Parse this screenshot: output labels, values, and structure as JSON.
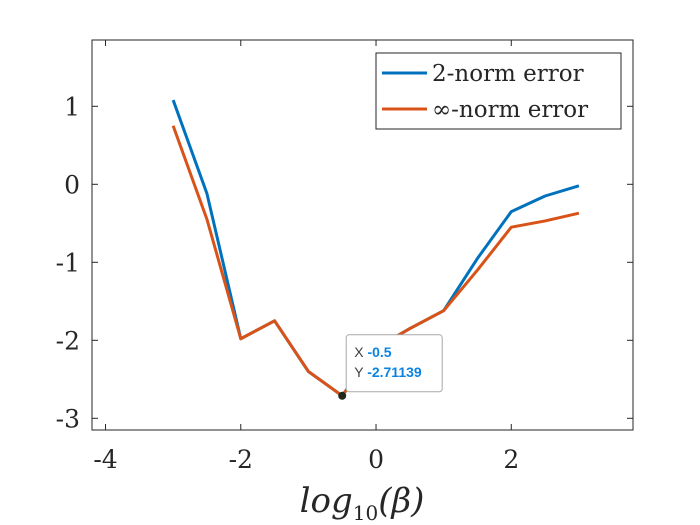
{
  "chart_data": {
    "type": "line",
    "title": "",
    "xlabel": {
      "prefix": "log",
      "subscript": "10",
      "arg": "(β)"
    },
    "ylabel": "",
    "xlim": [
      -4.2,
      3.8
    ],
    "ylim": [
      -3.15,
      1.85
    ],
    "xticks": [
      -4,
      -2,
      0,
      2
    ],
    "xtick_labels": [
      "-4",
      "-2",
      "0",
      "2"
    ],
    "yticks": [
      -3,
      -2,
      -1,
      0,
      1
    ],
    "ytick_labels": [
      "-3",
      "-2",
      "-1",
      "0",
      "1"
    ],
    "grid": false,
    "legend_position": "top-right",
    "series": [
      {
        "name": "2-norm error",
        "color": "#0072BD",
        "x": [
          -3,
          -2.5,
          -2,
          -1.5,
          -1,
          -0.5,
          0,
          0.5,
          1,
          1.5,
          2,
          2.5,
          3
        ],
        "y": [
          1.08,
          -0.12,
          -1.98,
          -1.75,
          -2.4,
          -2.71139,
          -2.1,
          -1.85,
          -1.62,
          -0.95,
          -0.35,
          -0.15,
          -0.02
        ]
      },
      {
        "name": "∞-norm error",
        "color": "#D95319",
        "x": [
          -3,
          -2.5,
          -2,
          -1.5,
          -1,
          -0.5,
          0,
          0.5,
          1,
          1.5,
          2,
          2.5,
          3
        ],
        "y": [
          0.75,
          -0.45,
          -1.98,
          -1.75,
          -2.4,
          -2.71139,
          -2.1,
          -1.85,
          -1.62,
          -1.1,
          -0.55,
          -0.47,
          -0.37
        ]
      }
    ],
    "datatip": {
      "x_key": "X",
      "x_value": "-0.5",
      "y_key": "Y",
      "y_value": "-2.71139",
      "x": -0.5,
      "y": -2.71139
    }
  }
}
